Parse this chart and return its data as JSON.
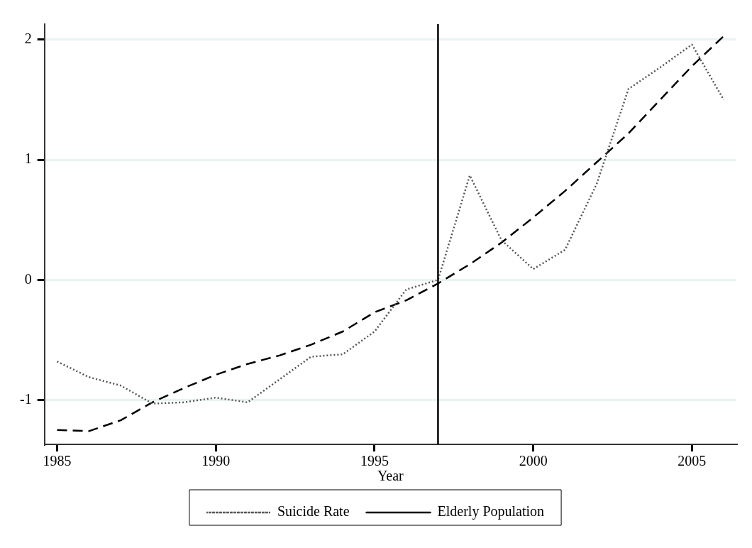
{
  "chart_data": {
    "type": "line",
    "xlabel": "Year",
    "x": [
      1985,
      1986,
      1987,
      1988,
      1989,
      1990,
      1991,
      1992,
      1993,
      1994,
      1995,
      1996,
      1997,
      1998,
      1999,
      2000,
      2001,
      2002,
      2003,
      2004,
      2005,
      2006
    ],
    "series": [
      {
        "name": "Suicide Rate",
        "color": "#555555",
        "line_style": "dotted",
        "values": [
          -0.68,
          -0.81,
          -0.88,
          -1.03,
          -1.02,
          -0.98,
          -1.02,
          -0.83,
          -0.64,
          -0.62,
          -0.43,
          -0.08,
          0.0,
          0.87,
          0.33,
          0.09,
          0.25,
          0.8,
          1.59,
          1.77,
          1.96,
          1.5
        ]
      },
      {
        "name": "Elderly Population",
        "color": "#000000",
        "line_style": "dashed",
        "values": [
          -1.25,
          -1.26,
          -1.17,
          -1.02,
          -0.9,
          -0.79,
          -0.7,
          -0.63,
          -0.54,
          -0.43,
          -0.27,
          -0.17,
          -0.03,
          0.13,
          0.31,
          0.52,
          0.74,
          0.98,
          1.22,
          1.5,
          1.78,
          2.03
        ]
      }
    ],
    "xlim": [
      1984.6,
      2006.4
    ],
    "xticks": [
      1985,
      1990,
      1995,
      2000,
      2005
    ],
    "ylim": [
      -1.37,
      2.13
    ],
    "yticks": [
      -1,
      0,
      1,
      2
    ],
    "ref_lines": [
      {
        "axis": "x",
        "value": 1997,
        "color": "#000000",
        "line_style": "solid"
      }
    ],
    "grid": "y",
    "legend": "bottom",
    "marker": "none"
  }
}
